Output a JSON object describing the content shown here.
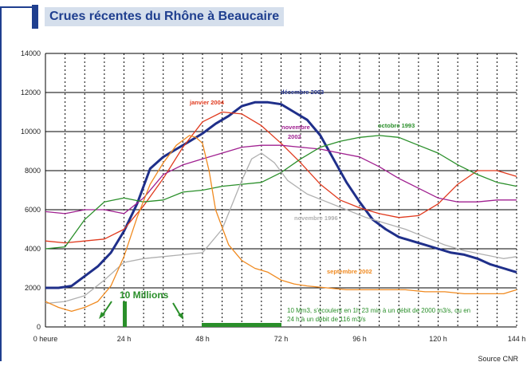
{
  "chart_data": {
    "type": "line",
    "title": "Crues récentes du Rhône à Beaucaire",
    "xlabel": "",
    "ylabel": "",
    "xlim": [
      0,
      144
    ],
    "ylim": [
      0,
      14000
    ],
    "x_ticks": [
      0,
      24,
      48,
      72,
      96,
      120,
      144
    ],
    "x_tick_labels": [
      "0 heure",
      "24 h",
      "48 h",
      "72 h",
      "96 h",
      "120 h",
      "144 h"
    ],
    "y_ticks": [
      0,
      2000,
      4000,
      6000,
      8000,
      10000,
      12000,
      14000
    ],
    "y_tick_labels": [
      "0",
      "2000",
      "4000",
      "6000",
      "8000",
      "10000",
      "12000",
      "14000"
    ],
    "grid": "vertical dotted every 6 h, horizontal solid every 2000",
    "series": [
      {
        "name": "décembre 2003",
        "color": "#1f2f8a",
        "x": [
          0,
          4,
          8,
          12,
          16,
          20,
          24,
          28,
          32,
          36,
          40,
          44,
          48,
          52,
          56,
          60,
          64,
          68,
          72,
          76,
          80,
          84,
          88,
          92,
          96,
          100,
          104,
          108,
          112,
          116,
          120,
          124,
          128,
          132,
          136,
          140,
          144
        ],
        "y": [
          2000,
          2000,
          2100,
          2600,
          3100,
          3800,
          4900,
          6300,
          8100,
          8700,
          9100,
          9500,
          9900,
          10400,
          10800,
          11300,
          11500,
          11500,
          11400,
          11000,
          10600,
          9800,
          8600,
          7400,
          6400,
          5500,
          5000,
          4600,
          4400,
          4200,
          4000,
          3800,
          3700,
          3500,
          3200,
          3000,
          2800
        ]
      },
      {
        "name": "janvier 2004",
        "color": "#e03a1e",
        "x": [
          0,
          6,
          12,
          18,
          24,
          30,
          36,
          42,
          48,
          54,
          60,
          66,
          72,
          78,
          84,
          90,
          96,
          102,
          108,
          114,
          120,
          126,
          132,
          138,
          144
        ],
        "y": [
          4400,
          4300,
          4400,
          4500,
          5000,
          6200,
          7600,
          9200,
          10500,
          11000,
          10900,
          10300,
          9400,
          8400,
          7300,
          6500,
          6100,
          5800,
          5600,
          5700,
          6300,
          7300,
          8000,
          8000,
          7700
        ]
      },
      {
        "name": "novembre 2002",
        "color": "#a02090",
        "x": [
          0,
          6,
          12,
          18,
          24,
          30,
          36,
          42,
          48,
          54,
          60,
          66,
          72,
          78,
          84,
          90,
          96,
          102,
          108,
          114,
          120,
          126,
          132,
          138,
          144
        ],
        "y": [
          5900,
          5800,
          6000,
          6000,
          5800,
          6600,
          7800,
          8300,
          8600,
          8900,
          9200,
          9300,
          9300,
          9200,
          9100,
          8900,
          8700,
          8200,
          7600,
          7100,
          6600,
          6400,
          6400,
          6500,
          6500
        ]
      },
      {
        "name": "octobre 1993",
        "color": "#2a8f2a",
        "x": [
          0,
          6,
          12,
          18,
          24,
          30,
          36,
          42,
          48,
          54,
          60,
          66,
          72,
          78,
          84,
          90,
          96,
          102,
          108,
          114,
          120,
          126,
          132,
          138,
          144
        ],
        "y": [
          4000,
          4100,
          5500,
          6400,
          6600,
          6400,
          6500,
          6900,
          7000,
          7200,
          7300,
          7400,
          7900,
          8600,
          9200,
          9500,
          9700,
          9800,
          9700,
          9300,
          8900,
          8300,
          7800,
          7400,
          7200
        ]
      },
      {
        "name": "novembre 1996",
        "color": "#b0b0b0",
        "x": [
          0,
          6,
          12,
          18,
          24,
          30,
          36,
          42,
          48,
          54,
          60,
          63,
          66,
          70,
          74,
          80,
          86,
          92,
          98,
          104,
          110,
          116,
          122,
          128,
          134,
          140,
          144
        ],
        "y": [
          1200,
          1300,
          1600,
          2400,
          3300,
          3500,
          3600,
          3700,
          3800,
          5000,
          7500,
          8600,
          8900,
          8400,
          7500,
          6800,
          6400,
          6000,
          5600,
          5300,
          5000,
          4600,
          4200,
          3900,
          3700,
          3500,
          3600
        ]
      },
      {
        "name": "septembre 2002",
        "color": "#f08a20",
        "x": [
          0,
          4,
          8,
          12,
          16,
          20,
          24,
          28,
          32,
          36,
          40,
          44,
          46,
          48,
          50,
          52,
          56,
          60,
          64,
          68,
          72,
          76,
          80,
          86,
          92,
          98,
          104,
          110,
          116,
          122,
          128,
          134,
          140,
          144
        ],
        "y": [
          1300,
          1000,
          800,
          1000,
          1300,
          2100,
          3600,
          5600,
          7300,
          8400,
          9300,
          9800,
          9700,
          9400,
          8000,
          6000,
          4200,
          3400,
          3000,
          2800,
          2400,
          2200,
          2100,
          2000,
          1900,
          1900,
          1900,
          1900,
          1800,
          1800,
          1700,
          1700,
          1700,
          1900
        ]
      }
    ],
    "annotations": [
      {
        "text": "10 Millions",
        "color": "#2a8f2a"
      },
      {
        "text": "10 Mm3, s'écoulent en 1h 23 min à un débit de 2000 m3/s, ou en 24 h à un débit de 116 m3/s",
        "color": "#2a8f2a"
      }
    ],
    "source": "Source CNR"
  }
}
